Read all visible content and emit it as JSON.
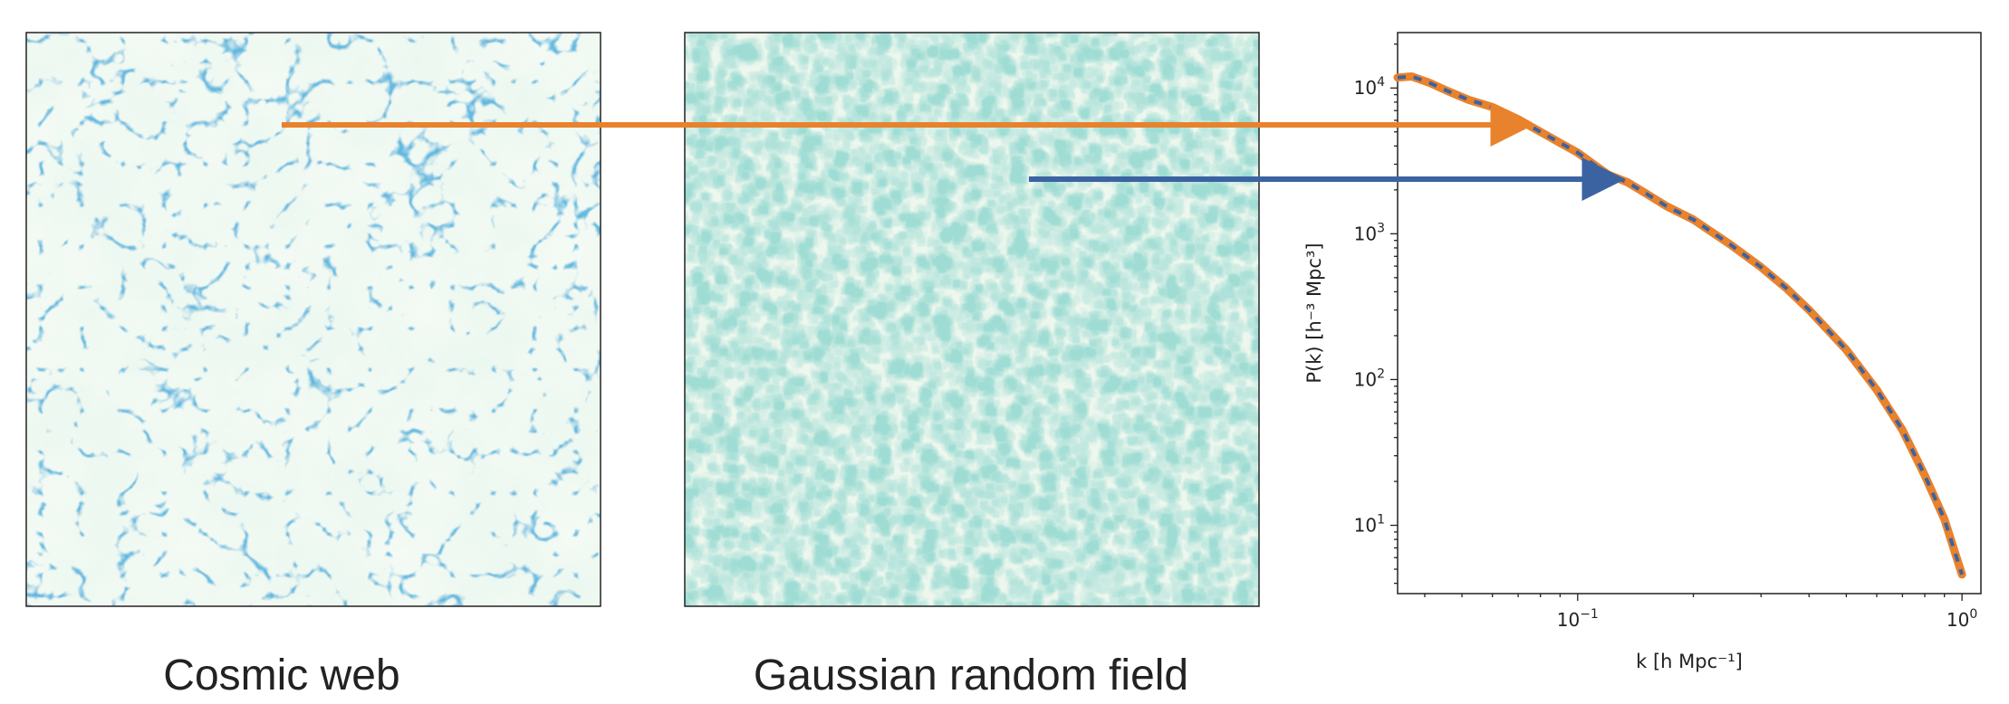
{
  "panels": {
    "cosmic_web": {
      "caption": "Cosmic web",
      "colormap": "GnBu",
      "structure": "filamentary"
    },
    "gaussian_field": {
      "caption": "Gaussian random field",
      "colormap": "GnBu",
      "structure": "pixelated noise"
    }
  },
  "arrows": {
    "cosmic_web_arrow_color": "#e8822d",
    "gaussian_arrow_color": "#3b63a1"
  },
  "chart_data": {
    "type": "line",
    "xlabel": "k [h Mpc⁻¹]",
    "ylabel": "P(k) [h⁻³ Mpc³]",
    "xscale": "log",
    "yscale": "log",
    "xlim": [
      0.034,
      1.12
    ],
    "ylim": [
      3.4,
      24000
    ],
    "grid": false,
    "x_ticks": [
      {
        "value": 0.1,
        "base": "10",
        "exp": "−1"
      },
      {
        "value": 1,
        "base": "10",
        "exp": "0"
      }
    ],
    "y_ticks": [
      {
        "value": 10,
        "base": "10",
        "exp": "1"
      },
      {
        "value": 100,
        "base": "10",
        "exp": "2"
      },
      {
        "value": 1000,
        "base": "10",
        "exp": "3"
      },
      {
        "value": 10000,
        "base": "10",
        "exp": "4"
      }
    ],
    "series": [
      {
        "color": "#e8822d",
        "style": "solid",
        "x": [
          0.034,
          0.037,
          0.041,
          0.046,
          0.052,
          0.06,
          0.07,
          0.08,
          0.09,
          0.1,
          0.11,
          0.12,
          0.135,
          0.15,
          0.17,
          0.2,
          0.25,
          0.3,
          0.35,
          0.4,
          0.5,
          0.6,
          0.7,
          0.8,
          0.9,
          1.0
        ],
        "y": [
          11800,
          12000,
          10900,
          9500,
          8300,
          7400,
          6100,
          5000,
          4200,
          3600,
          3000,
          2550,
          2250,
          1900,
          1550,
          1250,
          840,
          590,
          420,
          300,
          160,
          85,
          45,
          22,
          11,
          4.6
        ]
      },
      {
        "color": "#3b63a1",
        "style": "dashed",
        "x": [
          0.034,
          0.037,
          0.041,
          0.046,
          0.052,
          0.06,
          0.07,
          0.08,
          0.09,
          0.1,
          0.11,
          0.12,
          0.135,
          0.15,
          0.17,
          0.2,
          0.25,
          0.3,
          0.35,
          0.4,
          0.5,
          0.6,
          0.7,
          0.8,
          0.9,
          1.0
        ],
        "y": [
          11800,
          12000,
          10900,
          9500,
          8300,
          7400,
          6100,
          5000,
          4200,
          3600,
          3000,
          2550,
          2250,
          1900,
          1550,
          1250,
          840,
          590,
          420,
          300,
          160,
          85,
          45,
          22,
          11,
          4.6
        ]
      }
    ]
  }
}
